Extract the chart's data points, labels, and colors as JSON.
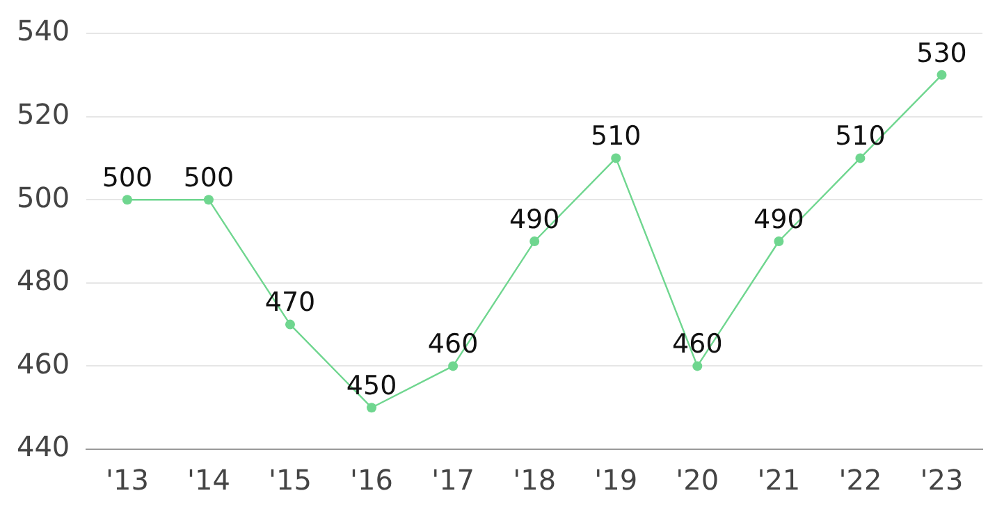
{
  "chart_data": {
    "type": "line",
    "categories": [
      "'13",
      "'14",
      "'15",
      "'16",
      "'17",
      "'18",
      "'19",
      "'20",
      "'21",
      "'22",
      "'23"
    ],
    "series": [
      {
        "color": "#6fd68f",
        "values": [
          500,
          500,
          470,
          450,
          460,
          490,
          510,
          460,
          490,
          510,
          530
        ]
      }
    ],
    "ylim": [
      440,
      540
    ],
    "yticks": [
      440,
      460,
      480,
      500,
      520,
      540
    ],
    "grid": "y",
    "legend": false,
    "marker": "circle",
    "line_style": "solid",
    "data_labels": true
  }
}
